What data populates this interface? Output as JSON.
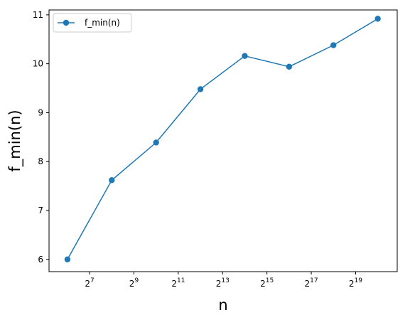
{
  "chart_data": {
    "type": "line",
    "xlabel": "n",
    "ylabel": "f_min(n)",
    "x_scale": "log2",
    "x_ticks": [
      {
        "base": "2",
        "exp": "7"
      },
      {
        "base": "2",
        "exp": "9"
      },
      {
        "base": "2",
        "exp": "11"
      },
      {
        "base": "2",
        "exp": "13"
      },
      {
        "base": "2",
        "exp": "15"
      },
      {
        "base": "2",
        "exp": "17"
      },
      {
        "base": "2",
        "exp": "19"
      }
    ],
    "y_ticks": [
      "6",
      "7",
      "8",
      "9",
      "10",
      "11"
    ],
    "xlim": [
      36,
      1925000
    ],
    "ylim": [
      5.75,
      11.1
    ],
    "legend_position": "top-left",
    "grid": false,
    "series": [
      {
        "name": "f_min(n)",
        "color": "#1f77b4",
        "marker": "circle",
        "x": [
          64,
          256,
          1024,
          4096,
          16384,
          65536,
          262144,
          1048576
        ],
        "y": [
          6.0,
          7.62,
          8.39,
          9.48,
          10.16,
          9.94,
          10.38,
          10.92
        ]
      }
    ]
  }
}
